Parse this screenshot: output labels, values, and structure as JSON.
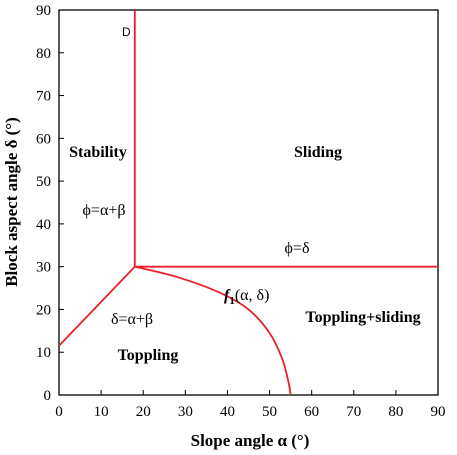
{
  "chart_data": {
    "type": "line",
    "xlabel": "Slope angle  α  (°)",
    "ylabel": "Block aspect angle  δ  (°)",
    "xlim": [
      0,
      90
    ],
    "ylim": [
      0,
      90
    ],
    "xticks": [
      "0",
      "10",
      "20",
      "30",
      "40",
      "50",
      "60",
      "70",
      "80",
      "90"
    ],
    "yticks": [
      "0",
      "10",
      "20",
      "30",
      "40",
      "50",
      "60",
      "70",
      "80",
      "90"
    ],
    "grid": false,
    "line_color": "#e8202a",
    "series": [
      {
        "values": [
          [
            18,
            30
          ],
          [
            18,
            90
          ]
        ]
      },
      {
        "values": [
          [
            18,
            30
          ],
          [
            90,
            30
          ]
        ]
      },
      {
        "values": [
          [
            0,
            11.5
          ],
          [
            18,
            30
          ]
        ]
      },
      {
        "values": [
          [
            18,
            30
          ],
          [
            28,
            27.6
          ],
          [
            38,
            24
          ],
          [
            45,
            20
          ],
          [
            50,
            14.5
          ],
          [
            53,
            8.5
          ],
          [
            54.5,
            3
          ],
          [
            55,
            0
          ]
        ]
      }
    ],
    "annotations": {
      "point_d": "D",
      "stability": "Stability",
      "sliding": "Sliding",
      "phi_eq": "ϕ=α+β",
      "phi_delta": "ϕ=δ",
      "f1_symbol": "f",
      "f1_sub": "1",
      "f1_args": "(α, δ)",
      "delta_eq": "δ=α+β",
      "toppling_sliding": "Toppling+sliding",
      "toppling": "Toppling"
    }
  }
}
